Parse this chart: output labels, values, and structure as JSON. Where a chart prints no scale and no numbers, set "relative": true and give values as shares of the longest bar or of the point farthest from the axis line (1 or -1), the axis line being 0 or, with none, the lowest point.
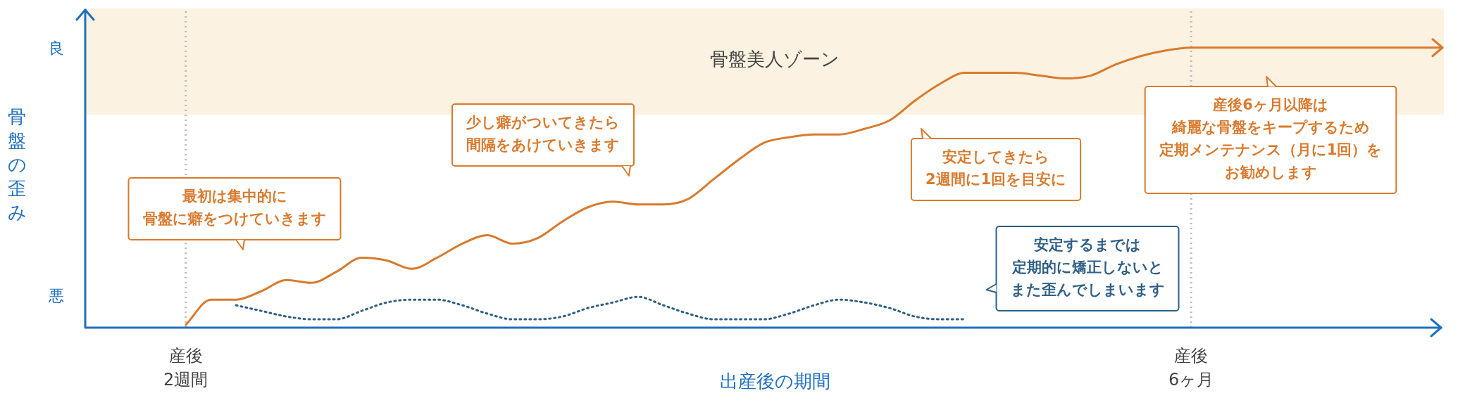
{
  "chart_data": {
    "type": "line",
    "relative": true,
    "xlabel": "出産後の期間",
    "ylabel": "骨盤の歪み",
    "categories": [
      null,
      null,
      null,
      null,
      "産後2週間",
      null,
      null,
      null,
      null,
      null,
      null,
      null,
      null,
      null,
      null,
      null,
      null,
      null,
      null,
      null,
      null,
      null,
      null,
      null,
      null,
      null,
      null,
      null,
      null,
      null,
      null,
      null,
      null,
      null,
      null,
      null,
      null,
      null,
      null,
      null,
      null,
      null,
      null,
      null,
      "産後6ヶ月",
      null,
      null,
      null,
      null,
      null,
      null,
      null,
      null,
      null,
      null
    ],
    "grid": false,
    "legend": false,
    "marker": "none",
    "series": [
      {
        "color": "#d97a2e",
        "line_style": "solid",
        "values": [
          null,
          null,
          null,
          null,
          0.01,
          0.1,
          0.1,
          0.13,
          0.17,
          0.16,
          0.2,
          0.25,
          0.24,
          0.21,
          0.25,
          0.3,
          0.33,
          0.3,
          0.32,
          0.38,
          0.43,
          0.45,
          0.44,
          0.44,
          0.46,
          0.53,
          0.6,
          0.66,
          0.68,
          0.69,
          0.69,
          0.71,
          0.74,
          0.81,
          0.87,
          0.91,
          0.91,
          0.91,
          0.9,
          0.89,
          0.9,
          0.94,
          0.97,
          0.99,
          1,
          1,
          1,
          1,
          1,
          1,
          1,
          1,
          1,
          1,
          1
        ]
      },
      {
        "color": "#2f5f86",
        "line_style": "dotted",
        "values": [
          null,
          null,
          null,
          null,
          null,
          null,
          0.08,
          0.06,
          0.04,
          0.03,
          0.03,
          0.06,
          0.09,
          0.1,
          0.1,
          0.08,
          0.05,
          0.03,
          0.03,
          0.04,
          0.07,
          0.09,
          0.11,
          0.08,
          0.05,
          0.03,
          0.03,
          0.03,
          0.05,
          0.08,
          0.1,
          0.09,
          0.07,
          0.04,
          0.03,
          0.03,
          null,
          null,
          null,
          null,
          null,
          null,
          null,
          null,
          null,
          null,
          null,
          null,
          null,
          null,
          null,
          null,
          null,
          null,
          null
        ]
      }
    ],
    "bands": [
      {
        "axis": "y",
        "from": 0.76,
        "to": 1.14,
        "label": "骨盤美人ゾーン",
        "color": "#fcf2e1"
      }
    ],
    "ref_lines": [
      {
        "axis": "x",
        "value": "産後2週間",
        "color": "#bbbbbb",
        "line_style": "dotted"
      },
      {
        "axis": "x",
        "value": "産後6ヶ月",
        "color": "#bbbbbb",
        "line_style": "dotted"
      }
    ],
    "annotations": [
      "最初は集中的に骨盤に癖をつけていきます",
      "少し癖がついてきたら間隔をあけていきます",
      "安定してきたら2週間に1回を目安に",
      "産後6ヶ月以降は綺麗な骨盤をキープするため定期メンテナンス（月に1回）をお勧めします",
      "安定するまでは定期的に矯正しないとまた歪んでしまいます",
      "良",
      "悪"
    ]
  }
}
